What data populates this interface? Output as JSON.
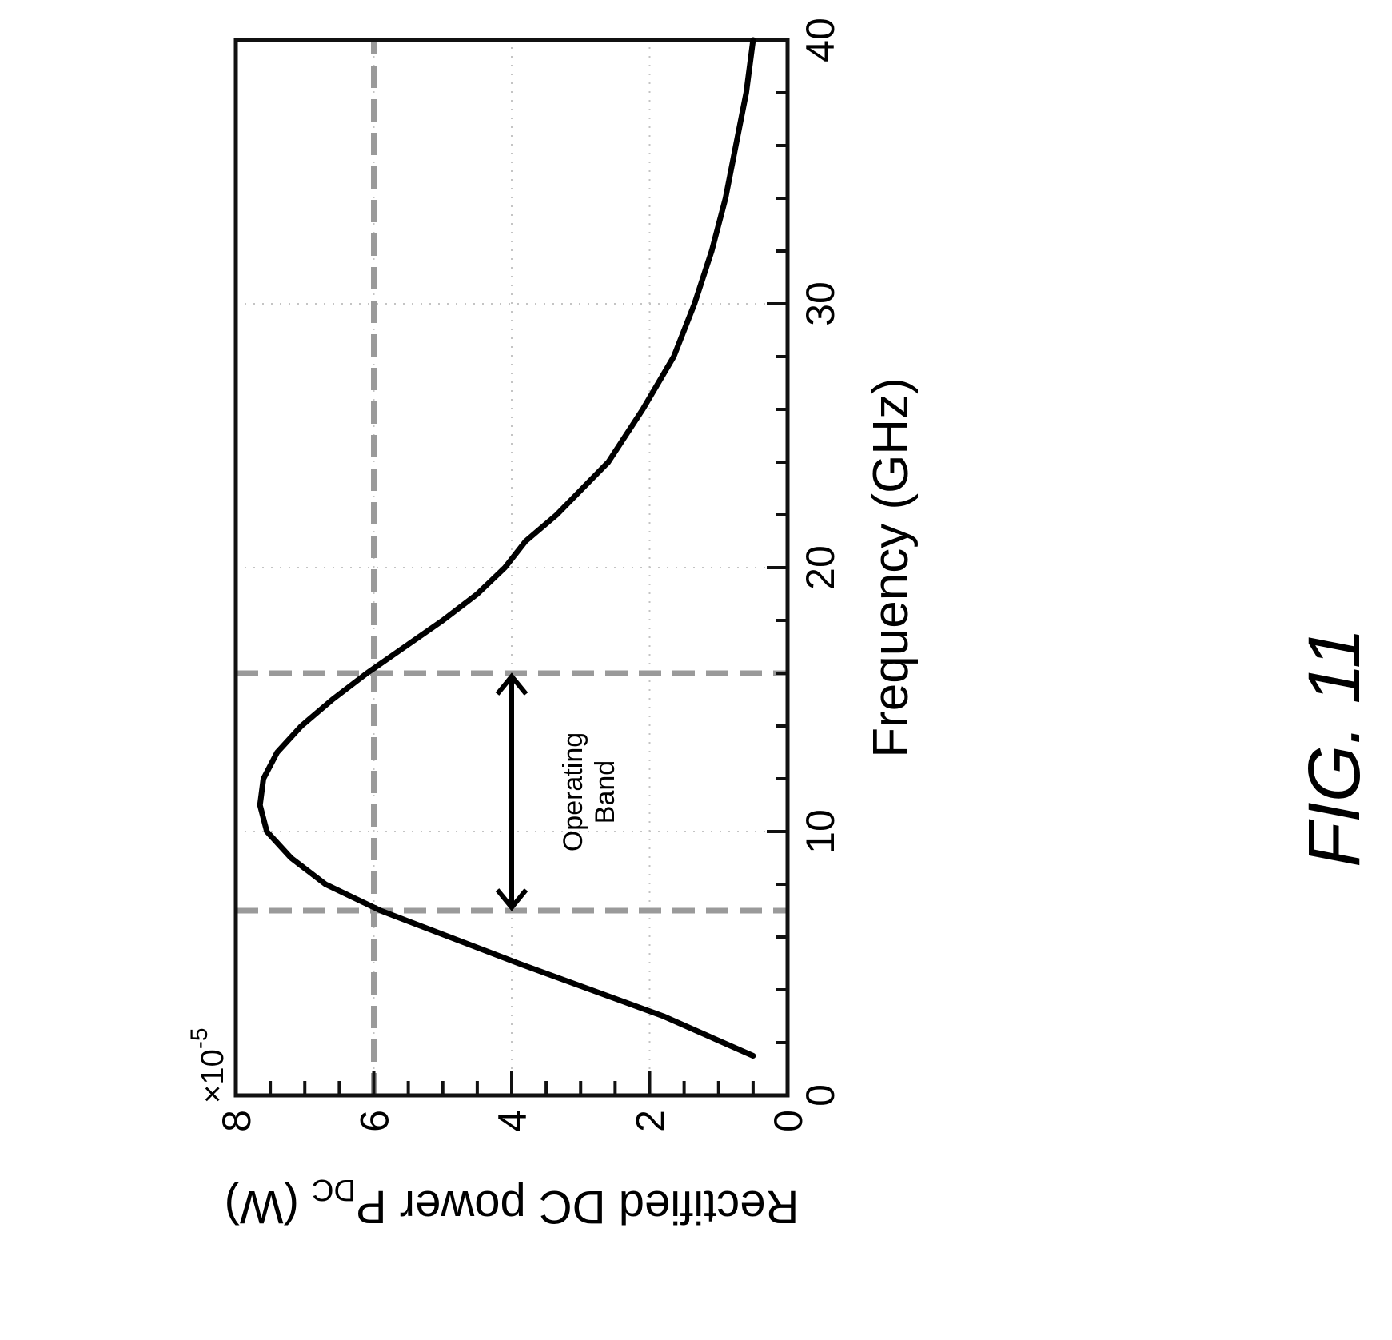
{
  "figure_label": "FIG. 11",
  "chart_data": {
    "type": "line",
    "xlabel": "Frequency (GHz)",
    "ylabel": "Rectified DC power P",
    "ylabel_subscript": "DC",
    "ylabel_unit": "(W)",
    "y_scale_multiplier": "×10",
    "y_scale_exponent": "-5",
    "xlim": [
      0,
      40
    ],
    "ylim": [
      0,
      8
    ],
    "x_ticks": [
      0,
      10,
      20,
      30,
      40
    ],
    "y_ticks": [
      0,
      2,
      4,
      6,
      8
    ],
    "x_tick_labels": [
      "0",
      "10",
      "20",
      "30",
      "40"
    ],
    "y_tick_labels": [
      "0",
      "2",
      "4",
      "6",
      "8"
    ],
    "grid": true,
    "orientation": "rotated 90° counter-clockwise",
    "series": [
      {
        "x": [
          1.5,
          3,
          5,
          7,
          8,
          9,
          10,
          11,
          12,
          13,
          14,
          15,
          16,
          17,
          18,
          19,
          20,
          21,
          22,
          24,
          26,
          28,
          30,
          32,
          34,
          36,
          38,
          40
        ],
        "y": [
          0.5,
          1.8,
          3.9,
          5.9,
          6.7,
          7.2,
          7.55,
          7.65,
          7.6,
          7.4,
          7.05,
          6.6,
          6.1,
          5.55,
          5.0,
          4.5,
          4.1,
          3.8,
          3.35,
          2.6,
          2.1,
          1.65,
          1.35,
          1.1,
          0.9,
          0.75,
          0.6,
          0.5
        ]
      }
    ],
    "reference_lines": {
      "horizontal_y": [
        6
      ],
      "vertical_x": [
        7,
        16
      ]
    },
    "annotation": {
      "text_line1": "Operating",
      "text_line2": "Band",
      "x_start": 7,
      "x_end": 16,
      "y": 4
    }
  }
}
